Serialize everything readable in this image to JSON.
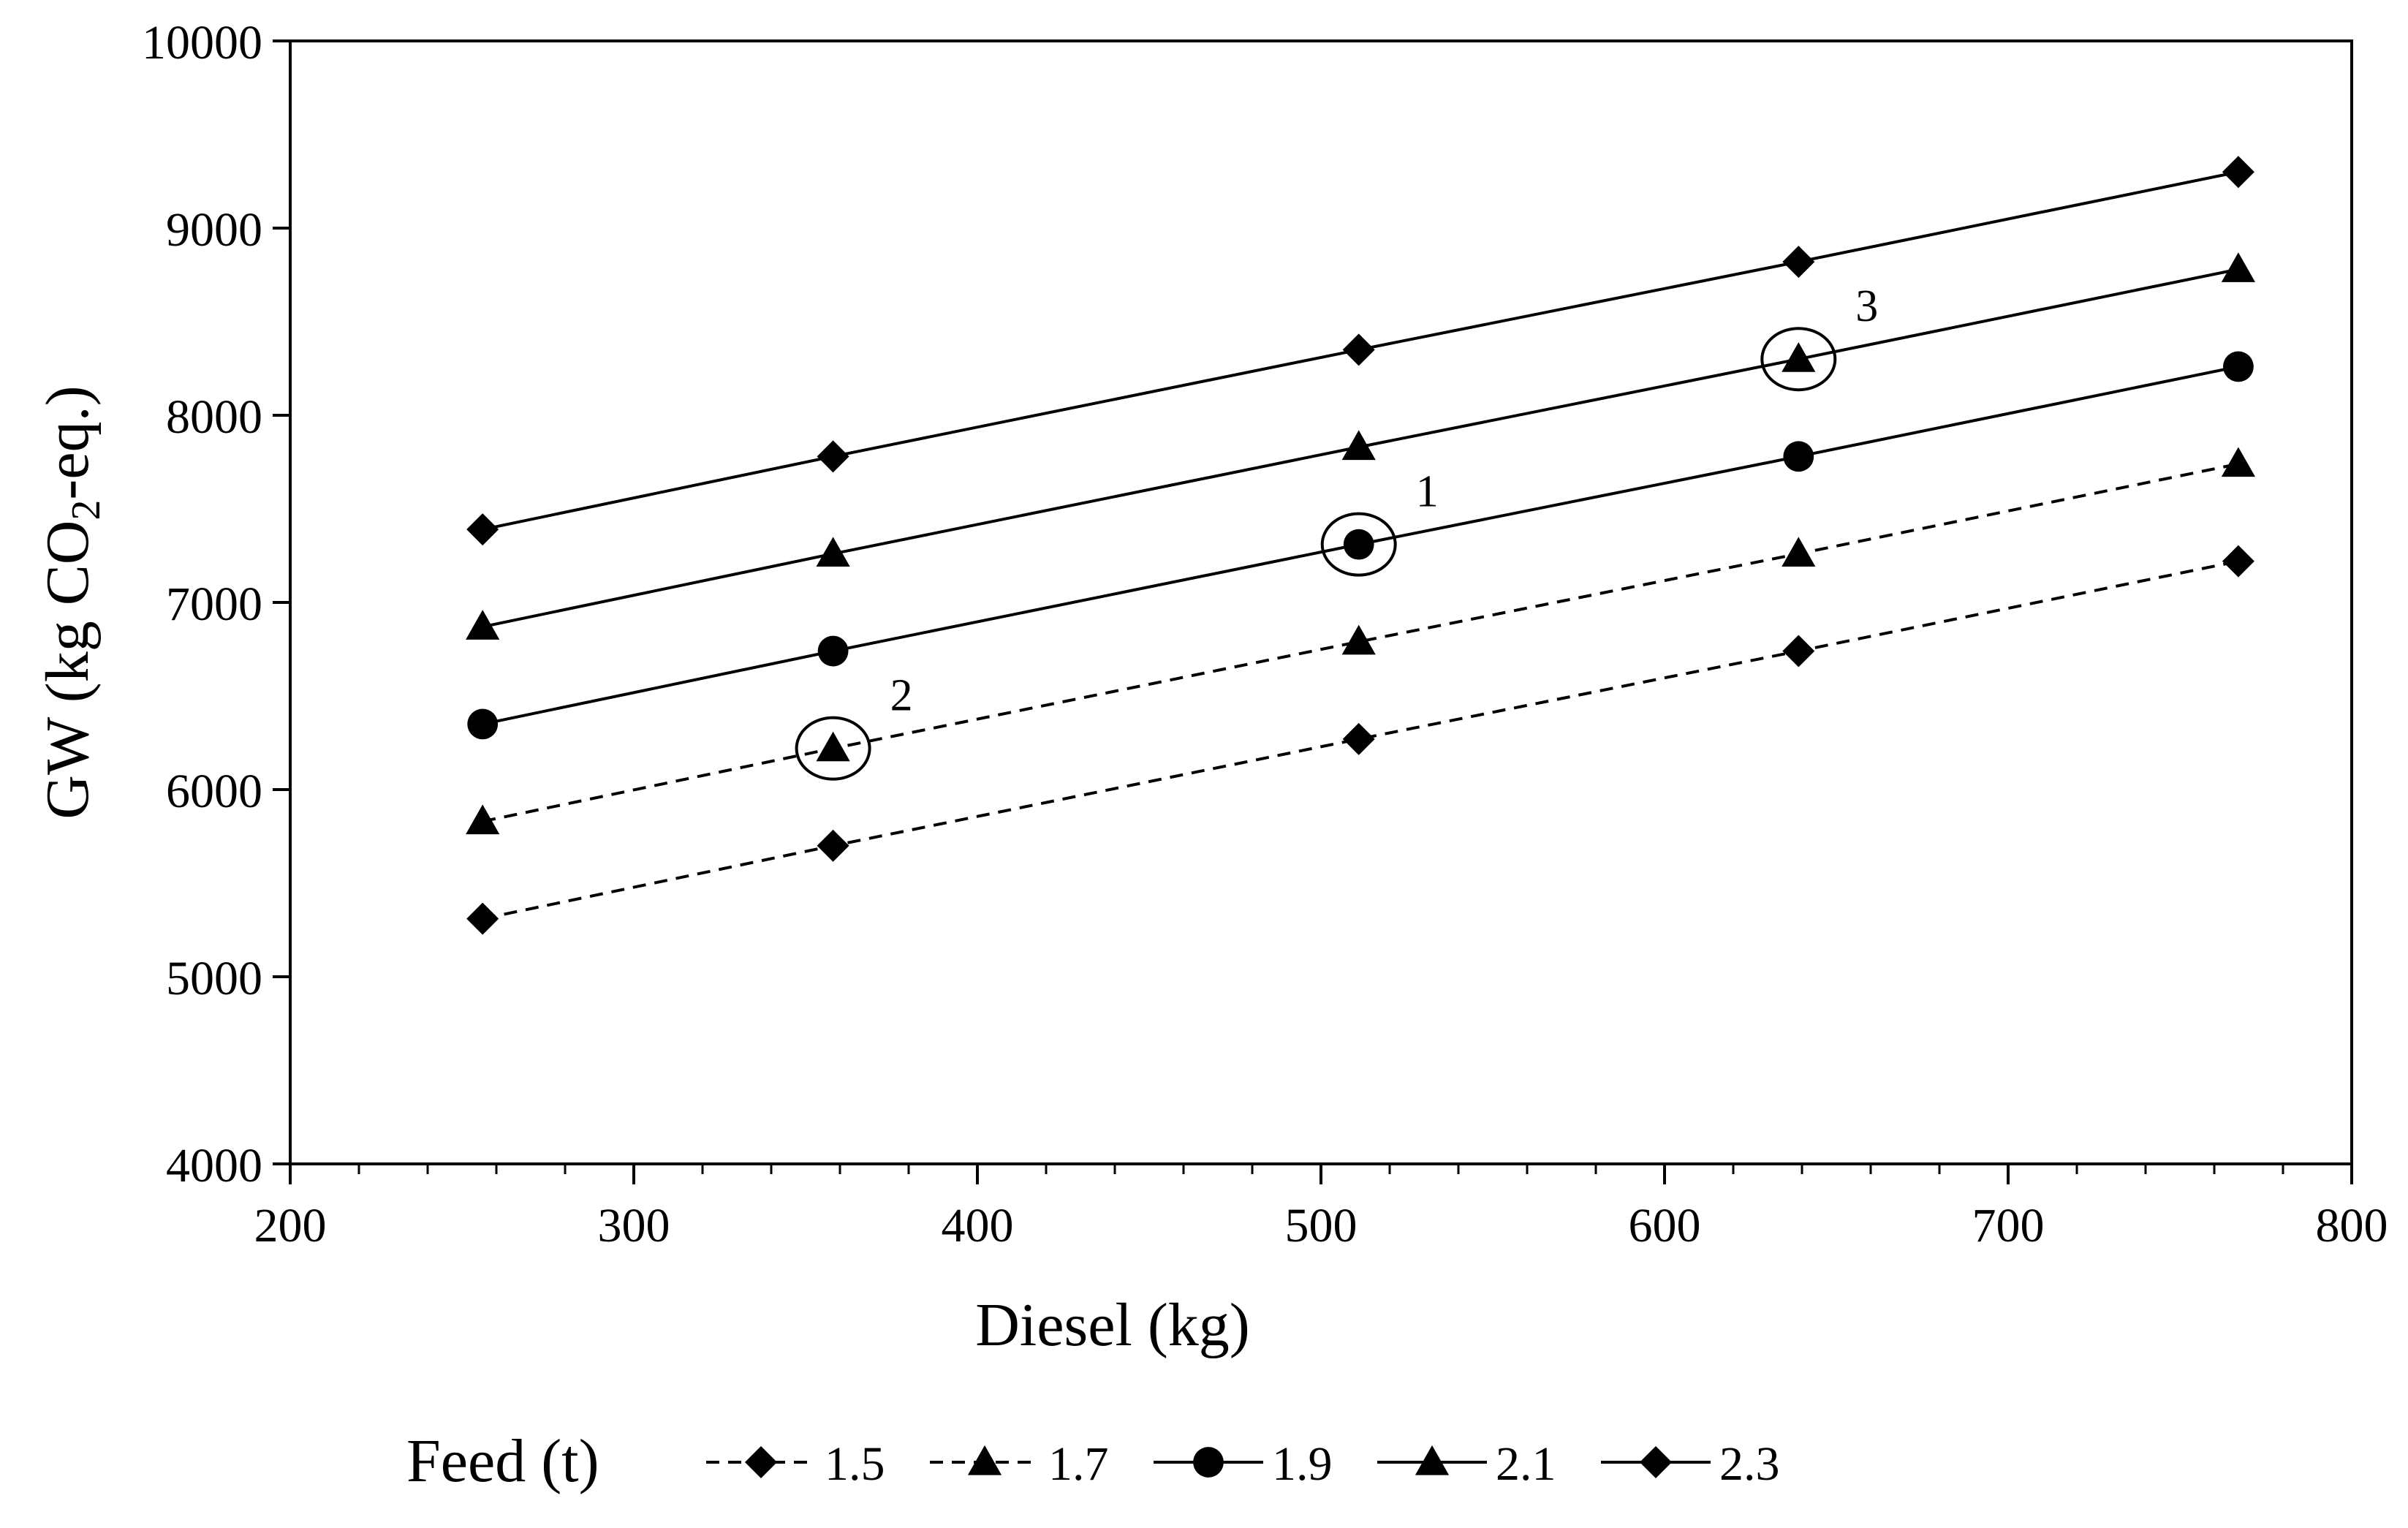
{
  "chart_data": {
    "type": "line",
    "xlabel": "Diesel (kg)",
    "ylabel_main": "GW (kg CO",
    "ylabel_sub": "2",
    "ylabel_tail": "-eq.)",
    "xlim": [
      200,
      800
    ],
    "ylim": [
      4000,
      10000
    ],
    "xticks": [
      200,
      300,
      400,
      500,
      600,
      700,
      800
    ],
    "yticks": [
      4000,
      5000,
      6000,
      7000,
      8000,
      9000,
      10000
    ],
    "x_minor_step": 20,
    "grid": false,
    "legend": {
      "title": "Feed (t)",
      "position": "bottom"
    },
    "x": [
      256,
      358,
      511,
      639,
      767
    ],
    "series": [
      {
        "name": "1.5",
        "marker": "diamond",
        "dash": true,
        "values": [
          5310,
          5700,
          6270,
          6740,
          7220
        ]
      },
      {
        "name": "1.7",
        "marker": "triangle",
        "dash": true,
        "values": [
          5830,
          6220,
          6790,
          7260,
          7740
        ]
      },
      {
        "name": "1.9",
        "marker": "circle",
        "dash": false,
        "values": [
          6350,
          6740,
          7310,
          7780,
          8260
        ]
      },
      {
        "name": "2.1",
        "marker": "triangle",
        "dash": false,
        "values": [
          6870,
          7260,
          7830,
          8300,
          8780
        ]
      },
      {
        "name": "2.3",
        "marker": "diamond",
        "dash": false,
        "values": [
          7390,
          7780,
          8350,
          8820,
          9300
        ]
      }
    ],
    "annotations": [
      {
        "label": "1",
        "x": 511,
        "y": 7310
      },
      {
        "label": "2",
        "x": 358,
        "y": 6220
      },
      {
        "label": "3",
        "x": 639,
        "y": 8300
      }
    ]
  }
}
